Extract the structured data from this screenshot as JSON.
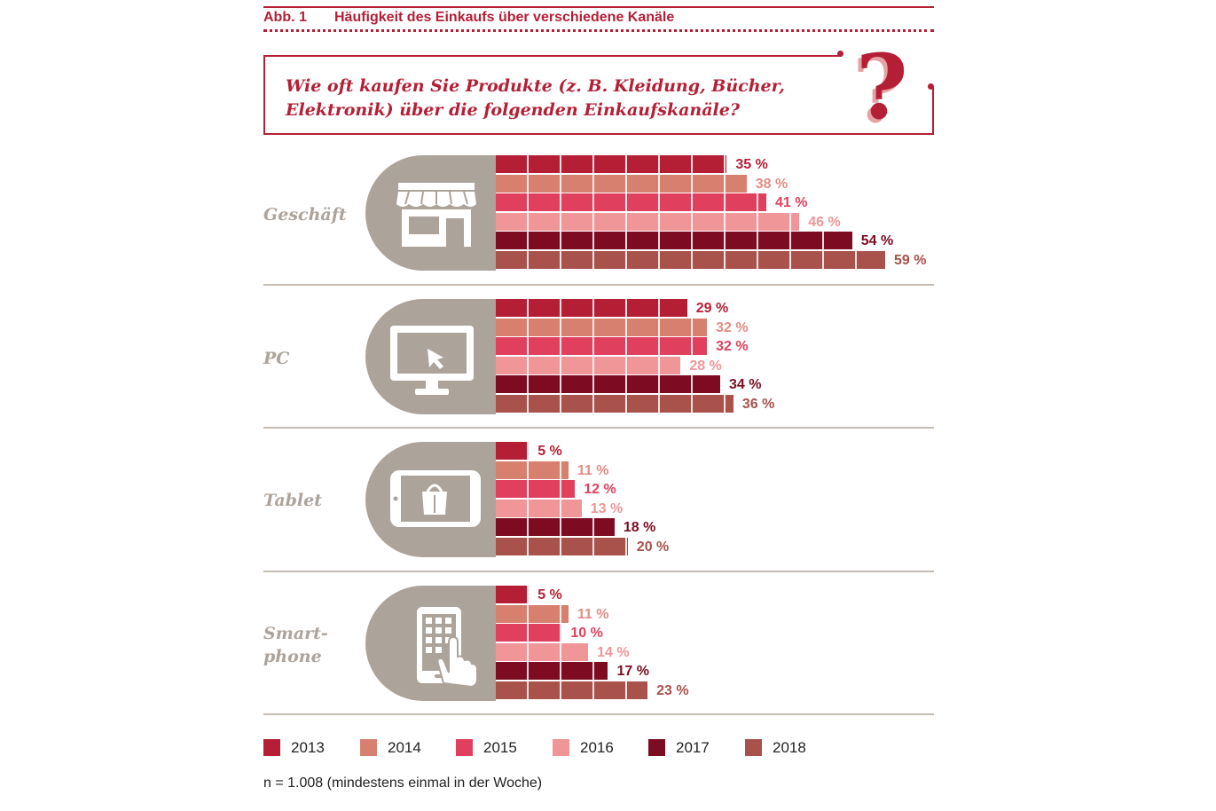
{
  "figure": {
    "number": "Abb. 1",
    "title": "Häufigkeit des Einkaufs über verschiedene Kanäle",
    "question": "Wie oft kaufen Sie Produkte (z. B. Kleidung, Bücher, Elektronik) über die folgenden Einkaufskanäle?",
    "note": "n = 1.008 (mindestens einmal in der Woche)"
  },
  "icons": [
    "question-mark-icon",
    "store-icon",
    "monitor-icon",
    "tablet-icon",
    "smartphone-icon"
  ],
  "chart_data": {
    "type": "bar",
    "orientation": "horizontal",
    "unit": "%",
    "xlim": [
      0,
      60
    ],
    "categories": [
      "Geschäft",
      "PC",
      "Tablet",
      "Smart-\nphone"
    ],
    "series": [
      {
        "name": "2013",
        "color": "#b51f35",
        "values": [
          35,
          29,
          5,
          5
        ]
      },
      {
        "name": "2014",
        "color": "#d8806f",
        "values": [
          38,
          32,
          11,
          11
        ]
      },
      {
        "name": "2015",
        "color": "#e0405e",
        "values": [
          41,
          32,
          12,
          10
        ]
      },
      {
        "name": "2016",
        "color": "#f09598",
        "values": [
          46,
          28,
          13,
          14
        ]
      },
      {
        "name": "2017",
        "color": "#7d0c22",
        "values": [
          54,
          34,
          18,
          17
        ]
      },
      {
        "name": "2018",
        "color": "#a9514b",
        "values": [
          59,
          36,
          20,
          23
        ]
      }
    ],
    "value_labels": [
      [
        "35 %",
        "38 %",
        "41 %",
        "46 %",
        "54 %",
        "59 %"
      ],
      [
        "29 %",
        "32 %",
        "32 %",
        "28 %",
        "34 %",
        "36 %"
      ],
      [
        "5 %",
        "11 %",
        "12 %",
        "13 %",
        "18 %",
        "20 %"
      ],
      [
        "5 %",
        "11 %",
        "10 %",
        "14 %",
        "17 %",
        "23 %"
      ]
    ],
    "label_colors": [
      "#b51f35",
      "#e18d84",
      "#e0405e",
      "#f09598",
      "#7d0c22",
      "#a9514b"
    ],
    "legend": "bottom"
  }
}
